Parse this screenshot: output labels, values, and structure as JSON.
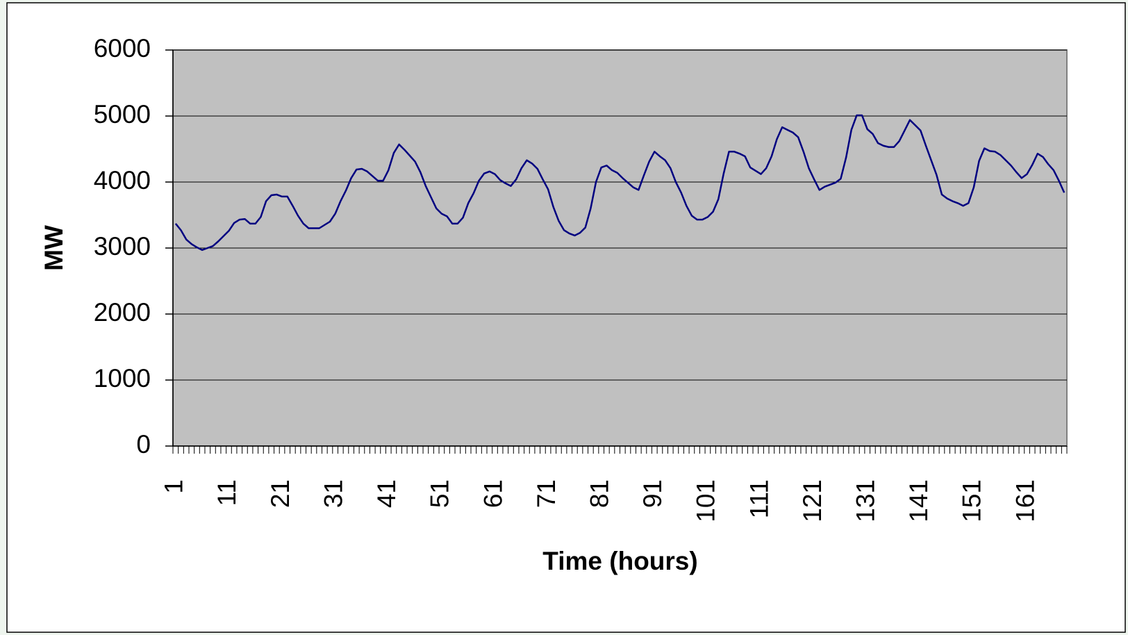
{
  "chart_data": {
    "type": "line",
    "x_label": "Time (hours)",
    "y_label": "MW",
    "categories": [
      1,
      null,
      null,
      null,
      null,
      null,
      null,
      null,
      null,
      null,
      11,
      null,
      null,
      null,
      null,
      null,
      null,
      null,
      null,
      null,
      21,
      null,
      null,
      null,
      null,
      null,
      null,
      null,
      null,
      null,
      31,
      null,
      null,
      null,
      null,
      null,
      null,
      null,
      null,
      null,
      41,
      null,
      null,
      null,
      null,
      null,
      null,
      null,
      null,
      null,
      51,
      null,
      null,
      null,
      null,
      null,
      null,
      null,
      null,
      null,
      61,
      null,
      null,
      null,
      null,
      null,
      null,
      null,
      null,
      null,
      71,
      null,
      null,
      null,
      null,
      null,
      null,
      null,
      null,
      null,
      81,
      null,
      null,
      null,
      null,
      null,
      null,
      null,
      null,
      null,
      91,
      null,
      null,
      null,
      null,
      null,
      null,
      null,
      null,
      null,
      101,
      null,
      null,
      null,
      null,
      null,
      null,
      null,
      null,
      null,
      111,
      null,
      null,
      null,
      null,
      null,
      null,
      null,
      null,
      null,
      121,
      null,
      null,
      null,
      null,
      null,
      null,
      null,
      null,
      null,
      131,
      null,
      null,
      null,
      null,
      null,
      null,
      null,
      null,
      null,
      141,
      null,
      null,
      null,
      null,
      null,
      null,
      null,
      null,
      null,
      151,
      null,
      null,
      null,
      null,
      null,
      null,
      null,
      null,
      null,
      161,
      null,
      null,
      null,
      null,
      null,
      null,
      null
    ],
    "series": [
      {
        "color": "#000080",
        "values": [
          3370,
          3270,
          3130,
          3060,
          3010,
          2970,
          3000,
          3030,
          3100,
          3180,
          3260,
          3380,
          3430,
          3440,
          3370,
          3370,
          3470,
          3710,
          3800,
          3810,
          3780,
          3780,
          3640,
          3490,
          3370,
          3300,
          3300,
          3300,
          3350,
          3400,
          3520,
          3710,
          3870,
          4060,
          4190,
          4200,
          4160,
          4090,
          4020,
          4020,
          4180,
          4440,
          4570,
          4490,
          4400,
          4310,
          4150,
          3940,
          3770,
          3600,
          3520,
          3480,
          3370,
          3370,
          3460,
          3680,
          3830,
          4020,
          4130,
          4160,
          4120,
          4030,
          3980,
          3940,
          4040,
          4210,
          4330,
          4280,
          4200,
          4040,
          3890,
          3620,
          3410,
          3270,
          3220,
          3190,
          3230,
          3310,
          3600,
          4000,
          4220,
          4250,
          4180,
          4140,
          4060,
          3990,
          3920,
          3880,
          4100,
          4310,
          4460,
          4390,
          4330,
          4210,
          4000,
          3840,
          3640,
          3490,
          3430,
          3430,
          3470,
          3550,
          3740,
          4130,
          4460,
          4460,
          4430,
          4390,
          4220,
          4170,
          4120,
          4210,
          4390,
          4650,
          4830,
          4790,
          4750,
          4680,
          4460,
          4210,
          4040,
          3880,
          3930,
          3960,
          3990,
          4050,
          4370,
          4790,
          5010,
          5010,
          4800,
          4730,
          4590,
          4550,
          4530,
          4530,
          4620,
          4780,
          4940,
          4860,
          4780,
          4550,
          4330,
          4110,
          3810,
          3750,
          3710,
          3680,
          3640,
          3680,
          3920,
          4320,
          4510,
          4470,
          4460,
          4410,
          4330,
          4250,
          4150,
          4060,
          4120,
          4260,
          4430,
          4380,
          4270,
          4180,
          4020,
          3840
        ]
      }
    ],
    "ylim": [
      0,
      6000
    ],
    "yticks": [
      0,
      1000,
      2000,
      3000,
      4000,
      5000,
      6000
    ],
    "grid": true,
    "plot_background": "#c0c0c0"
  }
}
